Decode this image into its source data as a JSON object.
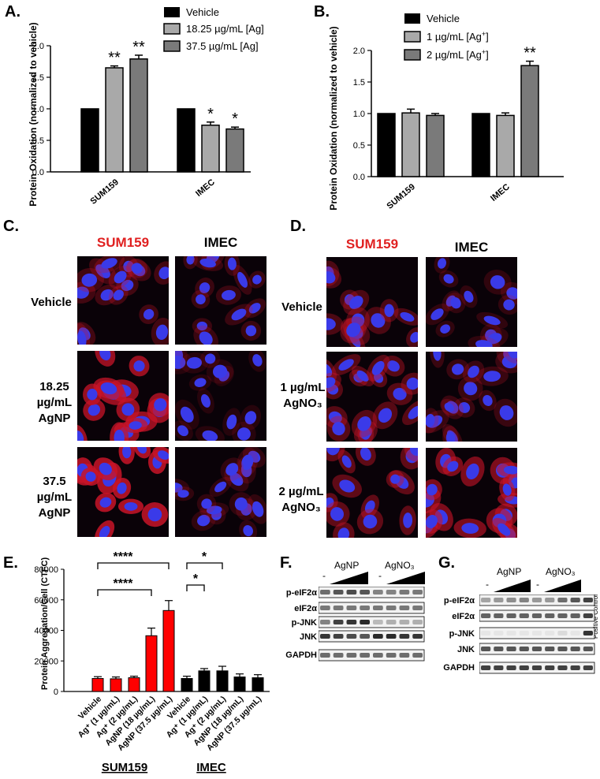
{
  "panels": {
    "a": "A.",
    "b": "B.",
    "c": "C.",
    "d": "D.",
    "e": "E.",
    "f": "F.",
    "g": "G."
  },
  "chartA": {
    "ylabel": "Protein Oxidation (normalized to vehicle)",
    "yticks": [
      "0.0",
      "0.5",
      "1.0",
      "1.5",
      "2.0"
    ],
    "legend": [
      "Vehicle",
      "18.25 µg/mL [Ag]",
      "37.5 µg/mL [Ag]"
    ]
  },
  "chartB": {
    "ylabel": "Protein Oxidation (normalized to vehicle)",
    "yticks": [
      "0.0",
      "0.5",
      "1.0",
      "1.5",
      "2.0"
    ],
    "legend": [
      "Vehicle",
      "1 µg/mL [Ag",
      "2 µg/mL [Ag"
    ],
    "legend_sup": [
      "",
      "+",
      "+"
    ],
    "legend_tail": [
      "",
      "]",
      "]"
    ]
  },
  "chartE": {
    "ylabel": "Protein Aggregation/Cell (CTFC)",
    "yticks": [
      "0",
      "20000",
      "40000",
      "60000",
      "80000"
    ],
    "xlabels": [
      "Vehicle",
      "Ag⁺ (1 µg/mL)",
      "Ag⁺ (2 µg/mL)",
      "AgNP (18 µg/mL)",
      "AgNP (37.5 µg/mL)",
      "Vehicle",
      "Ag⁺ (1 µg/mL)",
      "Ag⁺ (2 µg/mL)",
      "AgNP (18 µg/mL)",
      "AgNP (37.5 µg/mL)"
    ],
    "groups": [
      "SUM159",
      "IMEC"
    ],
    "sig": [
      "****",
      "****",
      "*",
      "*"
    ]
  },
  "chart_data": [
    {
      "type": "bar",
      "panel": "A",
      "categories": [
        "SUM159",
        "IMEC"
      ],
      "ylabel": "Protein Oxidation (normalized to vehicle)",
      "ylim": [
        0,
        2.0
      ],
      "series": [
        {
          "name": "Vehicle",
          "values": [
            1.0,
            1.0
          ],
          "errors": [
            0,
            0
          ],
          "sig": [
            "",
            ""
          ]
        },
        {
          "name": "18.25 µg/mL [Ag]",
          "values": [
            1.65,
            0.74
          ],
          "errors": [
            0.03,
            0.05
          ],
          "sig": [
            "**",
            "*"
          ]
        },
        {
          "name": "37.5 µg/mL [Ag]",
          "values": [
            1.79,
            0.68
          ],
          "errors": [
            0.06,
            0.03
          ],
          "sig": [
            "**",
            "*"
          ]
        }
      ],
      "colors": [
        "#000000",
        "#a9a9a9",
        "#7a7a7a"
      ]
    },
    {
      "type": "bar",
      "panel": "B",
      "categories": [
        "SUM159",
        "IMEC"
      ],
      "ylabel": "Protein Oxidation (normalized to vehicle)",
      "ylim": [
        0,
        2.0
      ],
      "series": [
        {
          "name": "Vehicle",
          "values": [
            1.0,
            1.0
          ],
          "errors": [
            0,
            0
          ],
          "sig": [
            "",
            ""
          ]
        },
        {
          "name": "1 µg/mL [Ag+]",
          "values": [
            1.01,
            0.97
          ],
          "errors": [
            0.06,
            0.04
          ],
          "sig": [
            "",
            ""
          ]
        },
        {
          "name": "2 µg/mL [Ag+]",
          "values": [
            0.97,
            1.76
          ],
          "errors": [
            0.03,
            0.07
          ],
          "sig": [
            "",
            "**"
          ]
        }
      ],
      "colors": [
        "#000000",
        "#a9a9a9",
        "#7a7a7a"
      ]
    },
    {
      "type": "bar",
      "panel": "E",
      "categories": [
        "Vehicle",
        "Ag+ (1 µg/mL)",
        "Ag+ (2 µg/mL)",
        "AgNP (18 µg/mL)",
        "AgNP (37.5 µg/mL)",
        "Vehicle",
        "Ag+ (1 µg/mL)",
        "Ag+ (2 µg/mL)",
        "AgNP (18 µg/mL)",
        "AgNP (37.5 µg/mL)"
      ],
      "groups": [
        "SUM159",
        "IMEC"
      ],
      "ylabel": "Protein Aggregation/Cell (CTFC)",
      "ylim": [
        0,
        80000
      ],
      "values": [
        8500,
        8300,
        9000,
        36500,
        53000,
        8500,
        13500,
        13500,
        9500,
        9000
      ],
      "errors": [
        1200,
        1200,
        1000,
        5000,
        6500,
        1500,
        1500,
        3000,
        2000,
        2000
      ],
      "colors": [
        "#ff0000",
        "#ff0000",
        "#ff0000",
        "#ff0000",
        "#ff0000",
        "#000000",
        "#000000",
        "#000000",
        "#000000",
        "#000000"
      ]
    }
  ],
  "panelC": {
    "cols": [
      "SUM159",
      "IMEC"
    ],
    "rows": [
      "Vehicle",
      "18.25\nµg/mL\nAgNP",
      "37.5\nµg/mL\nAgNP"
    ]
  },
  "panelD": {
    "cols": [
      "SUM159",
      "IMEC"
    ],
    "rows": [
      "Vehicle",
      "1 µg/mL\nAgNO₃",
      "2 µg/mL\nAgNO₃"
    ]
  },
  "panelF": {
    "groups": [
      "AgNP",
      "AgNO₃"
    ],
    "minus": "-",
    "rows": [
      "p-eIF2α",
      "eIF2α",
      "p-JNK",
      "JNK",
      "GAPDH"
    ]
  },
  "panelG": {
    "groups": [
      "AgNP",
      "AgNO₃"
    ],
    "minus": "-",
    "rows": [
      "p-eIF2α",
      "eIF2α",
      "p-JNK",
      "JNK",
      "GAPDH"
    ],
    "positive": "Positive Control"
  },
  "colors": {
    "sum159": "#e02020",
    "imec": "#000000",
    "red_bar": "#ff0000",
    "gray1": "#a9a9a9",
    "gray2": "#7a7a7a"
  }
}
